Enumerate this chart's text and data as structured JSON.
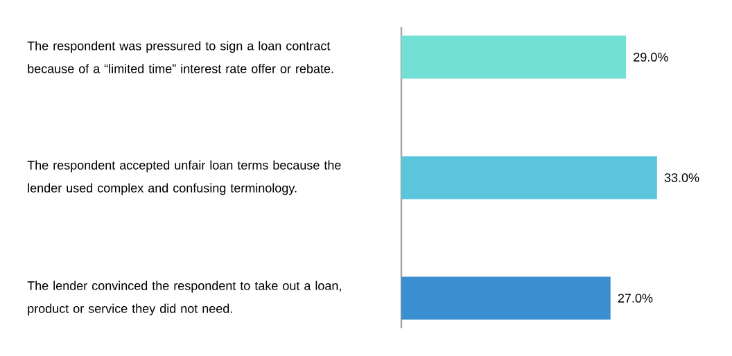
{
  "chart_data": {
    "type": "bar",
    "orientation": "horizontal",
    "categories": [
      "The respondent was pressured to sign a loan contract because of a “limited time” interest rate offer or rebate.",
      "The respondent accepted unfair loan terms because the lender used complex and confusing terminology.",
      "The lender convinced the respondent to take out a loan, product or service they did not need."
    ],
    "values": [
      29,
      33,
      27
    ],
    "colors": [
      "#72e0d5",
      "#5bc6db",
      "#3b8fd0"
    ],
    "value_labels": [
      "29.0%",
      "33.0%",
      "27.0%"
    ]
  }
}
